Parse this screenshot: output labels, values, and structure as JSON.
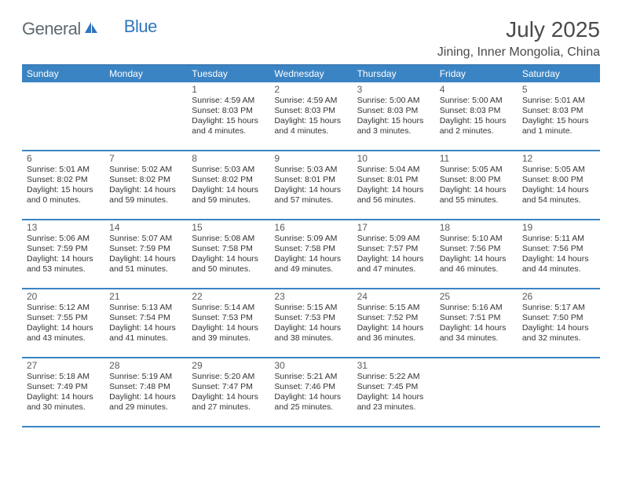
{
  "logo": {
    "text1": "General",
    "text2": "Blue"
  },
  "title": "July 2025",
  "location": "Jining, Inner Mongolia, China",
  "colors": {
    "header_bg": "#3b84c4",
    "header_text": "#ffffff",
    "row_border": "#3b84c4",
    "body_text": "#333333",
    "title_text": "#4a4a4a",
    "logo_gray": "#5f6a72",
    "logo_blue": "#2f76bb",
    "background": "#ffffff"
  },
  "weekdays": [
    "Sunday",
    "Monday",
    "Tuesday",
    "Wednesday",
    "Thursday",
    "Friday",
    "Saturday"
  ],
  "weeks": [
    [
      null,
      null,
      {
        "n": "1",
        "sr": "Sunrise: 4:59 AM",
        "ss": "Sunset: 8:03 PM",
        "dl1": "Daylight: 15 hours",
        "dl2": "and 4 minutes."
      },
      {
        "n": "2",
        "sr": "Sunrise: 4:59 AM",
        "ss": "Sunset: 8:03 PM",
        "dl1": "Daylight: 15 hours",
        "dl2": "and 4 minutes."
      },
      {
        "n": "3",
        "sr": "Sunrise: 5:00 AM",
        "ss": "Sunset: 8:03 PM",
        "dl1": "Daylight: 15 hours",
        "dl2": "and 3 minutes."
      },
      {
        "n": "4",
        "sr": "Sunrise: 5:00 AM",
        "ss": "Sunset: 8:03 PM",
        "dl1": "Daylight: 15 hours",
        "dl2": "and 2 minutes."
      },
      {
        "n": "5",
        "sr": "Sunrise: 5:01 AM",
        "ss": "Sunset: 8:03 PM",
        "dl1": "Daylight: 15 hours",
        "dl2": "and 1 minute."
      }
    ],
    [
      {
        "n": "6",
        "sr": "Sunrise: 5:01 AM",
        "ss": "Sunset: 8:02 PM",
        "dl1": "Daylight: 15 hours",
        "dl2": "and 0 minutes."
      },
      {
        "n": "7",
        "sr": "Sunrise: 5:02 AM",
        "ss": "Sunset: 8:02 PM",
        "dl1": "Daylight: 14 hours",
        "dl2": "and 59 minutes."
      },
      {
        "n": "8",
        "sr": "Sunrise: 5:03 AM",
        "ss": "Sunset: 8:02 PM",
        "dl1": "Daylight: 14 hours",
        "dl2": "and 59 minutes."
      },
      {
        "n": "9",
        "sr": "Sunrise: 5:03 AM",
        "ss": "Sunset: 8:01 PM",
        "dl1": "Daylight: 14 hours",
        "dl2": "and 57 minutes."
      },
      {
        "n": "10",
        "sr": "Sunrise: 5:04 AM",
        "ss": "Sunset: 8:01 PM",
        "dl1": "Daylight: 14 hours",
        "dl2": "and 56 minutes."
      },
      {
        "n": "11",
        "sr": "Sunrise: 5:05 AM",
        "ss": "Sunset: 8:00 PM",
        "dl1": "Daylight: 14 hours",
        "dl2": "and 55 minutes."
      },
      {
        "n": "12",
        "sr": "Sunrise: 5:05 AM",
        "ss": "Sunset: 8:00 PM",
        "dl1": "Daylight: 14 hours",
        "dl2": "and 54 minutes."
      }
    ],
    [
      {
        "n": "13",
        "sr": "Sunrise: 5:06 AM",
        "ss": "Sunset: 7:59 PM",
        "dl1": "Daylight: 14 hours",
        "dl2": "and 53 minutes."
      },
      {
        "n": "14",
        "sr": "Sunrise: 5:07 AM",
        "ss": "Sunset: 7:59 PM",
        "dl1": "Daylight: 14 hours",
        "dl2": "and 51 minutes."
      },
      {
        "n": "15",
        "sr": "Sunrise: 5:08 AM",
        "ss": "Sunset: 7:58 PM",
        "dl1": "Daylight: 14 hours",
        "dl2": "and 50 minutes."
      },
      {
        "n": "16",
        "sr": "Sunrise: 5:09 AM",
        "ss": "Sunset: 7:58 PM",
        "dl1": "Daylight: 14 hours",
        "dl2": "and 49 minutes."
      },
      {
        "n": "17",
        "sr": "Sunrise: 5:09 AM",
        "ss": "Sunset: 7:57 PM",
        "dl1": "Daylight: 14 hours",
        "dl2": "and 47 minutes."
      },
      {
        "n": "18",
        "sr": "Sunrise: 5:10 AM",
        "ss": "Sunset: 7:56 PM",
        "dl1": "Daylight: 14 hours",
        "dl2": "and 46 minutes."
      },
      {
        "n": "19",
        "sr": "Sunrise: 5:11 AM",
        "ss": "Sunset: 7:56 PM",
        "dl1": "Daylight: 14 hours",
        "dl2": "and 44 minutes."
      }
    ],
    [
      {
        "n": "20",
        "sr": "Sunrise: 5:12 AM",
        "ss": "Sunset: 7:55 PM",
        "dl1": "Daylight: 14 hours",
        "dl2": "and 43 minutes."
      },
      {
        "n": "21",
        "sr": "Sunrise: 5:13 AM",
        "ss": "Sunset: 7:54 PM",
        "dl1": "Daylight: 14 hours",
        "dl2": "and 41 minutes."
      },
      {
        "n": "22",
        "sr": "Sunrise: 5:14 AM",
        "ss": "Sunset: 7:53 PM",
        "dl1": "Daylight: 14 hours",
        "dl2": "and 39 minutes."
      },
      {
        "n": "23",
        "sr": "Sunrise: 5:15 AM",
        "ss": "Sunset: 7:53 PM",
        "dl1": "Daylight: 14 hours",
        "dl2": "and 38 minutes."
      },
      {
        "n": "24",
        "sr": "Sunrise: 5:15 AM",
        "ss": "Sunset: 7:52 PM",
        "dl1": "Daylight: 14 hours",
        "dl2": "and 36 minutes."
      },
      {
        "n": "25",
        "sr": "Sunrise: 5:16 AM",
        "ss": "Sunset: 7:51 PM",
        "dl1": "Daylight: 14 hours",
        "dl2": "and 34 minutes."
      },
      {
        "n": "26",
        "sr": "Sunrise: 5:17 AM",
        "ss": "Sunset: 7:50 PM",
        "dl1": "Daylight: 14 hours",
        "dl2": "and 32 minutes."
      }
    ],
    [
      {
        "n": "27",
        "sr": "Sunrise: 5:18 AM",
        "ss": "Sunset: 7:49 PM",
        "dl1": "Daylight: 14 hours",
        "dl2": "and 30 minutes."
      },
      {
        "n": "28",
        "sr": "Sunrise: 5:19 AM",
        "ss": "Sunset: 7:48 PM",
        "dl1": "Daylight: 14 hours",
        "dl2": "and 29 minutes."
      },
      {
        "n": "29",
        "sr": "Sunrise: 5:20 AM",
        "ss": "Sunset: 7:47 PM",
        "dl1": "Daylight: 14 hours",
        "dl2": "and 27 minutes."
      },
      {
        "n": "30",
        "sr": "Sunrise: 5:21 AM",
        "ss": "Sunset: 7:46 PM",
        "dl1": "Daylight: 14 hours",
        "dl2": "and 25 minutes."
      },
      {
        "n": "31",
        "sr": "Sunrise: 5:22 AM",
        "ss": "Sunset: 7:45 PM",
        "dl1": "Daylight: 14 hours",
        "dl2": "and 23 minutes."
      },
      null,
      null
    ]
  ]
}
